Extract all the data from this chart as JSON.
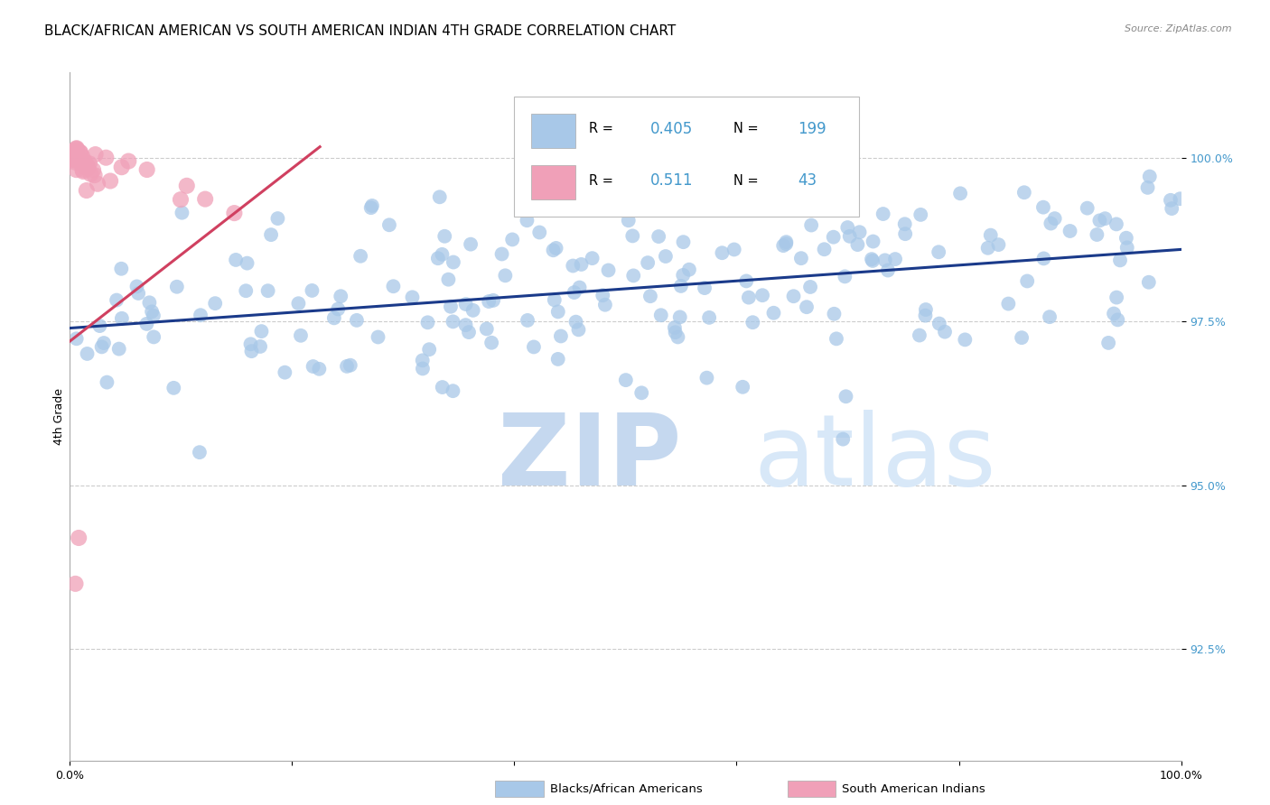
{
  "title": "BLACK/AFRICAN AMERICAN VS SOUTH AMERICAN INDIAN 4TH GRADE CORRELATION CHART",
  "source": "Source: ZipAtlas.com",
  "ylabel": "4th Grade",
  "y_tick_labels": [
    "92.5%",
    "95.0%",
    "97.5%",
    "100.0%"
  ],
  "y_tick_values": [
    0.925,
    0.95,
    0.975,
    1.0
  ],
  "x_min": 0.0,
  "x_max": 1.0,
  "y_min": 0.908,
  "y_max": 1.013,
  "legend_label_blue": "Blacks/African Americans",
  "legend_label_pink": "South American Indians",
  "R_blue": "0.405",
  "N_blue": "199",
  "R_pink": "0.511",
  "N_pink": "43",
  "blue_color": "#a8c8e8",
  "pink_color": "#f0a0b8",
  "blue_line_color": "#1a3a8a",
  "pink_line_color": "#d04060",
  "title_fontsize": 11,
  "axis_label_fontsize": 9,
  "tick_fontsize": 9,
  "background_color": "#ffffff",
  "grid_color": "#cccccc"
}
